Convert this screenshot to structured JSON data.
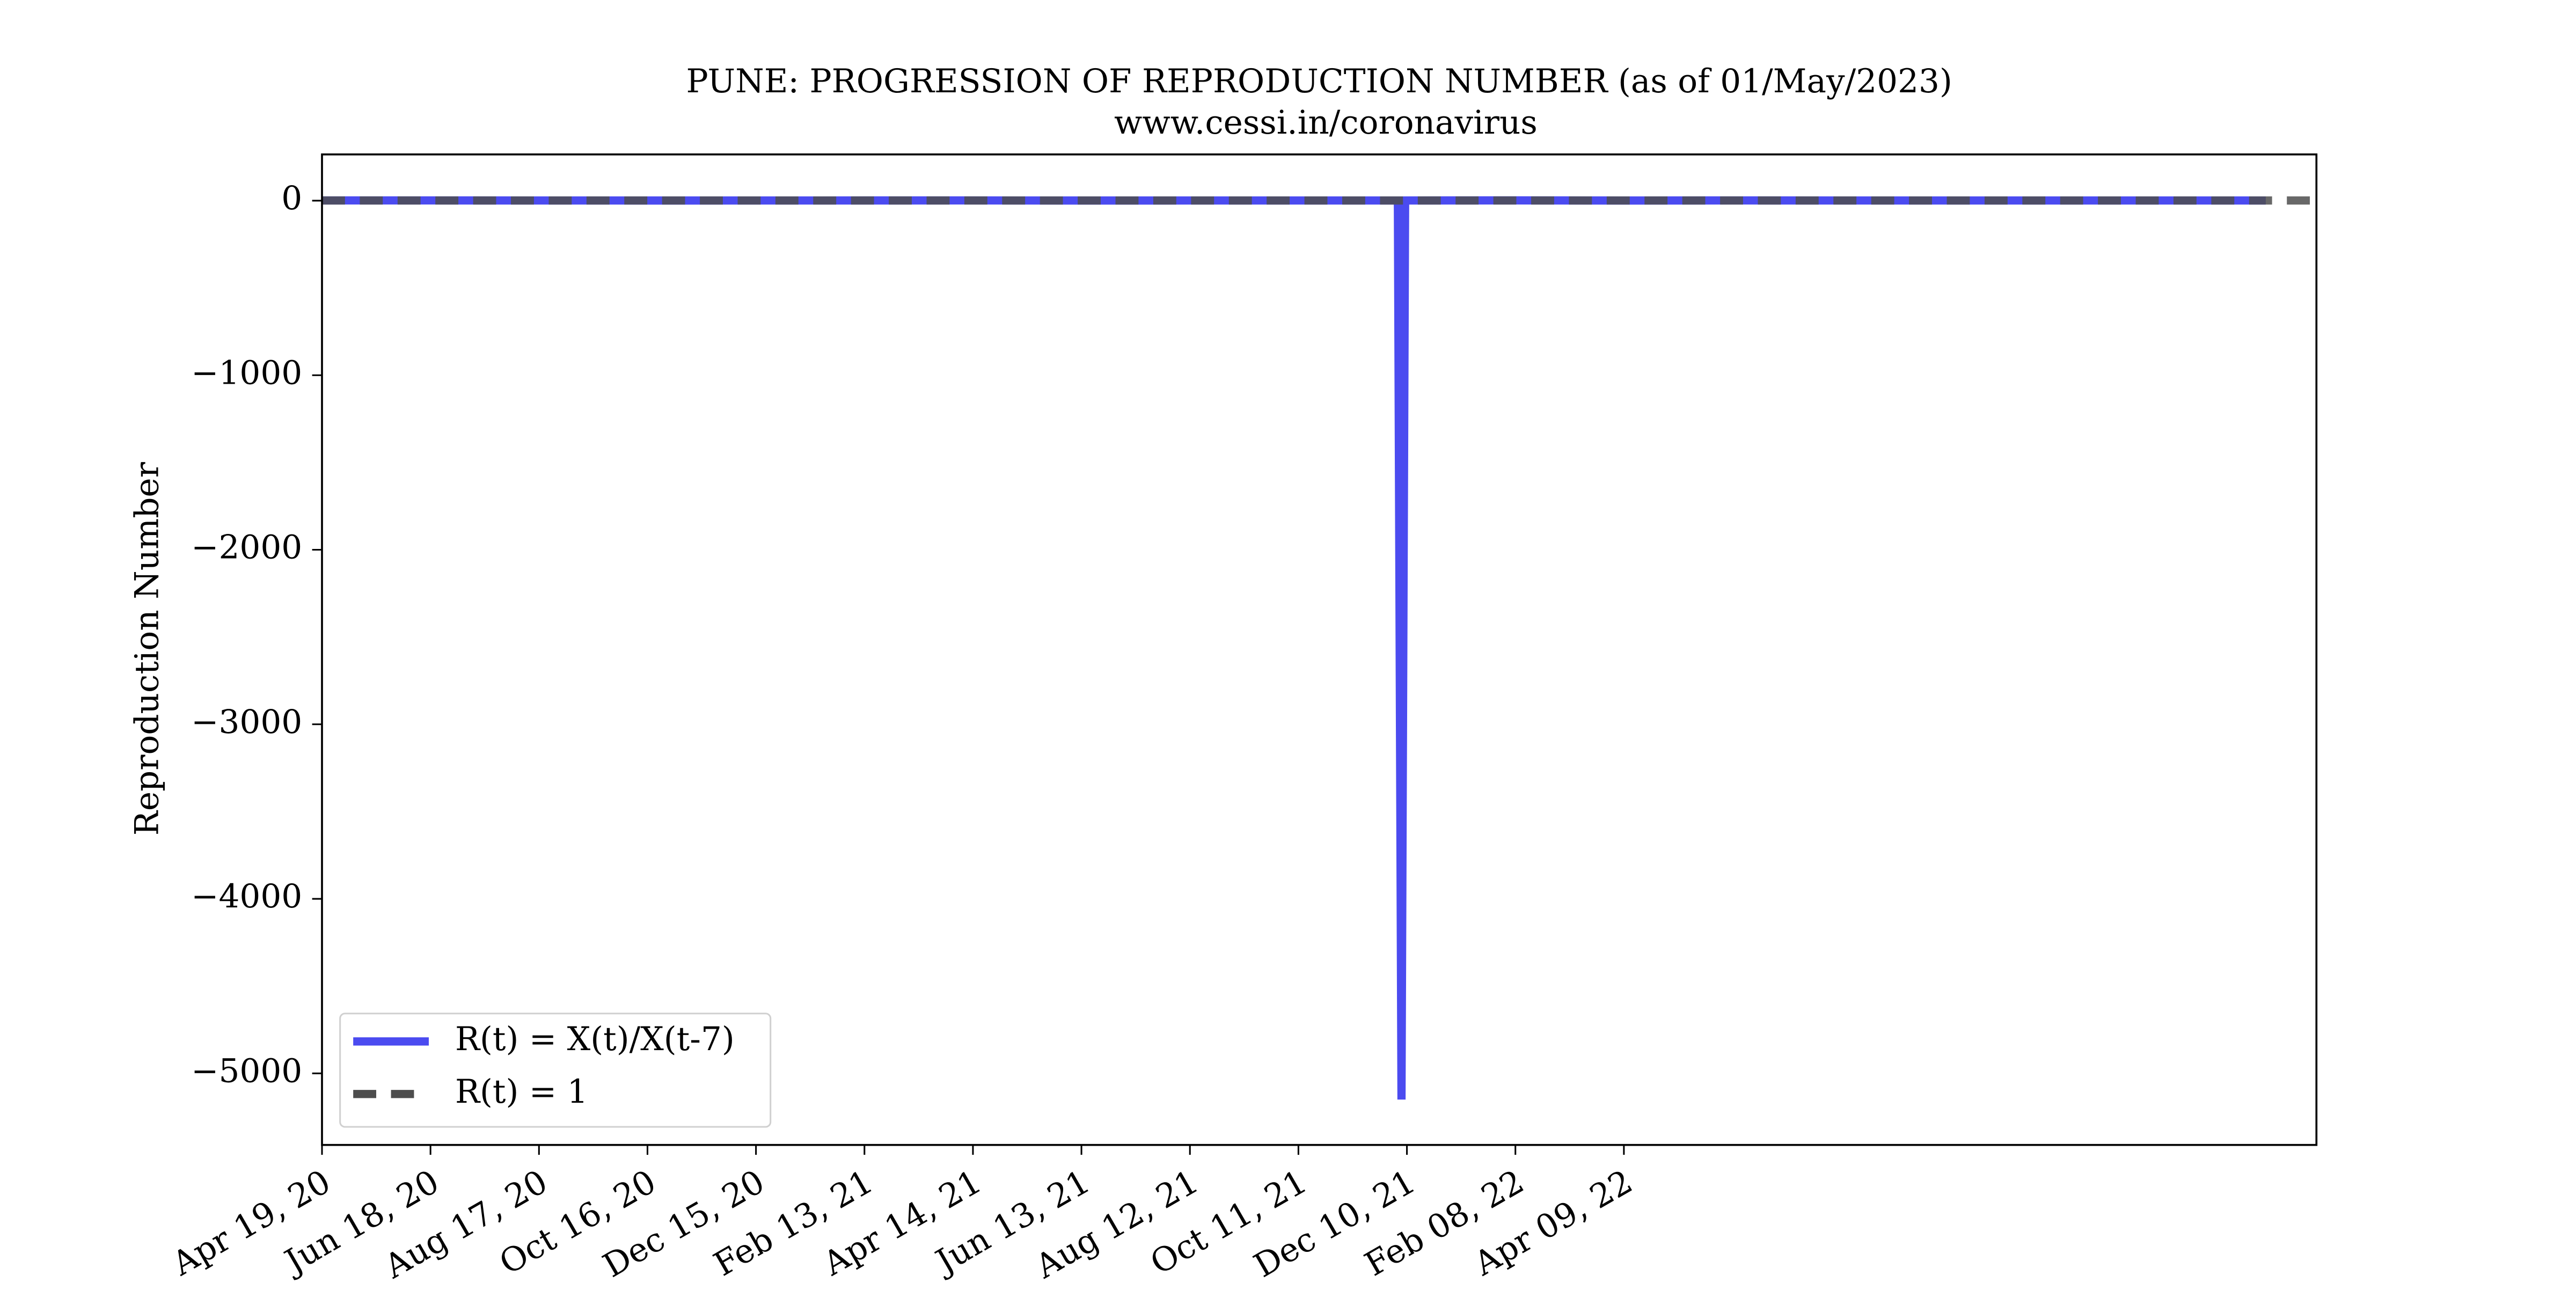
{
  "chart_data": {
    "type": "line",
    "title": "PUNE: PROGRESSION OF REPRODUCTION NUMBER (as of 01/May/2023)",
    "subtitle": "www.cessi.in/coronavirus",
    "y_label": "Reproduction Number",
    "xlim": [
      "2020-04-19",
      "2023-04-27"
    ],
    "xticks": [
      {
        "value": "2020-04-19",
        "label": "Apr 19, 20"
      },
      {
        "value": "2020-06-18",
        "label": "Jun 18, 20"
      },
      {
        "value": "2020-08-17",
        "label": "Aug 17, 20"
      },
      {
        "value": "2020-10-16",
        "label": "Oct 16, 20"
      },
      {
        "value": "2020-12-15",
        "label": "Dec 15, 20"
      },
      {
        "value": "2021-02-13",
        "label": "Feb 13, 21"
      },
      {
        "value": "2021-04-14",
        "label": "Apr 14, 21"
      },
      {
        "value": "2021-06-13",
        "label": "Jun 13, 21"
      },
      {
        "value": "2021-08-12",
        "label": "Aug 12, 21"
      },
      {
        "value": "2021-10-11",
        "label": "Oct 11, 21"
      },
      {
        "value": "2021-12-10",
        "label": "Dec 10, 21"
      },
      {
        "value": "2022-02-08",
        "label": "Feb 08, 22"
      },
      {
        "value": "2022-04-09",
        "label": "Apr 09, 22"
      }
    ],
    "ylim": [
      -5410,
      265
    ],
    "yticks": [
      {
        "value": 0,
        "label": "0"
      },
      {
        "value": -1000,
        "label": "−1000"
      },
      {
        "value": -2000,
        "label": "−2000"
      },
      {
        "value": -3000,
        "label": "−3000"
      },
      {
        "value": -4000,
        "label": "−4000"
      },
      {
        "value": -5000,
        "label": "−5000"
      }
    ],
    "legend": "lower left",
    "series": [
      {
        "name": "R(t) = X(t)/X(t-7)",
        "color": "#4b4bf0",
        "style": "solid",
        "x": [
          "2020-04-19",
          "2020-06-18",
          "2020-08-17",
          "2020-10-16",
          "2020-12-15",
          "2021-02-13",
          "2021-04-14",
          "2021-06-13",
          "2021-08-12",
          "2021-10-11",
          "2021-12-05",
          "2021-12-07",
          "2021-12-09",
          "2022-02-08",
          "2022-04-09",
          "2022-06-08",
          "2022-08-07",
          "2022-10-06",
          "2022-12-05",
          "2023-02-03",
          "2023-03-30"
        ],
        "values": [
          1.5,
          1.3,
          1.1,
          0.8,
          0.9,
          1.2,
          1.4,
          0.7,
          0.9,
          1.0,
          1.0,
          -5150,
          1.0,
          1.6,
          0.8,
          1.3,
          0.9,
          1.0,
          1.1,
          1.0,
          1.0
        ]
      },
      {
        "name": "R(t) = 1",
        "color": "#4d4d4d",
        "style": "dashed",
        "x": [
          "2020-04-19",
          "2023-04-27"
        ],
        "values": [
          1,
          1
        ]
      }
    ]
  }
}
